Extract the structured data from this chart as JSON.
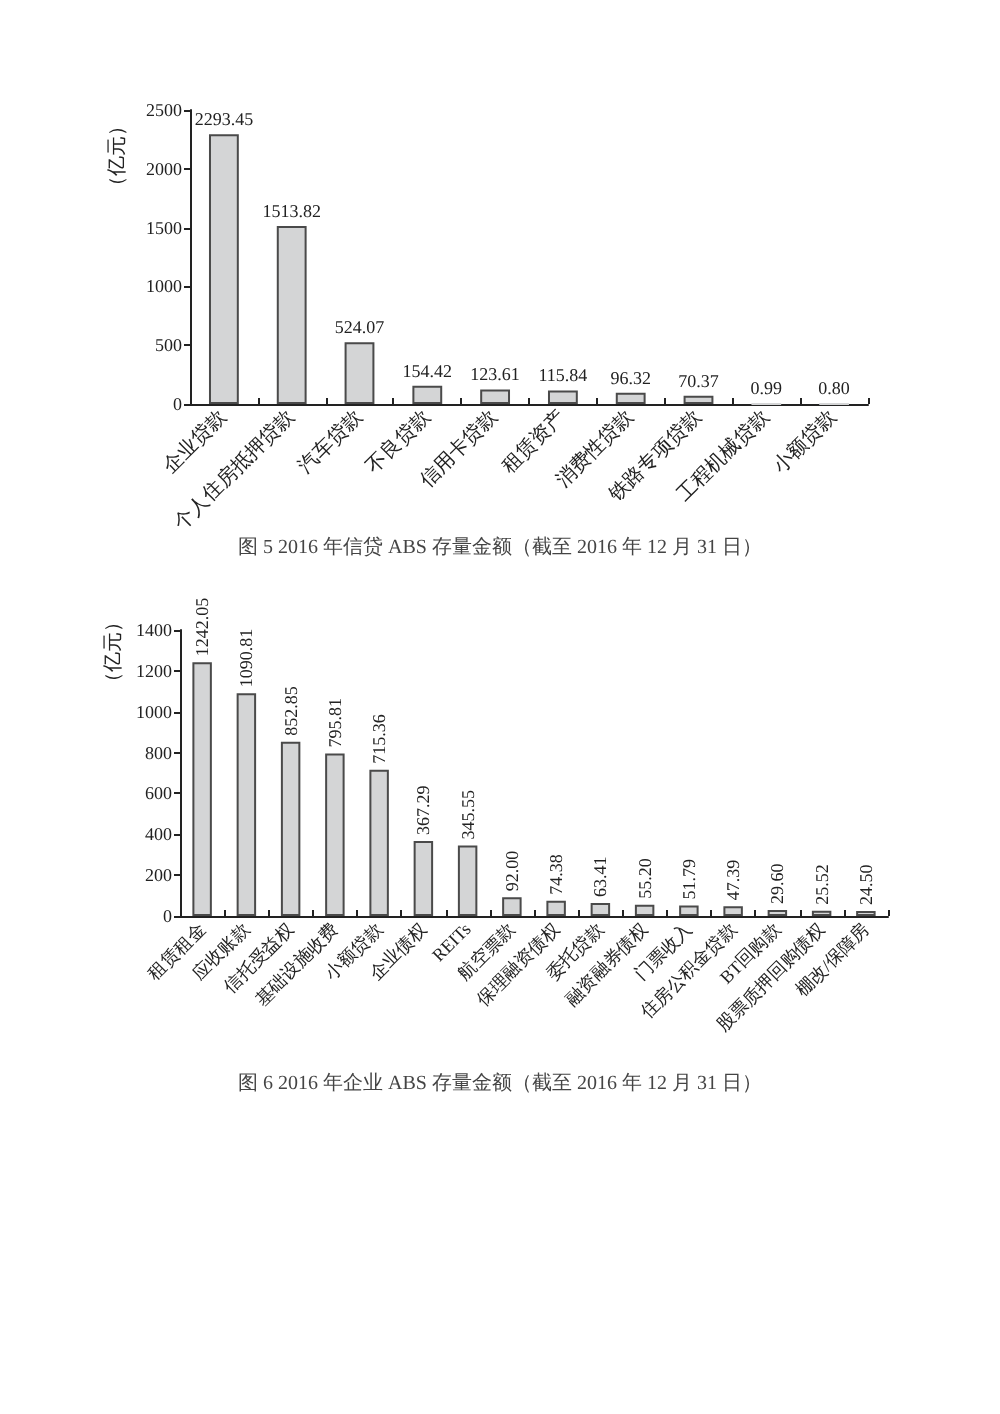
{
  "chart_data": [
    {
      "type": "bar",
      "title": "图 5 2016 年信贷 ABS 存量金额（截至 2016 年 12 月 31 日）",
      "ylabel": "（亿元）",
      "categories": [
        "企业贷款",
        "个人住房抵押贷款",
        "汽车贷款",
        "不良贷款",
        "信用卡贷款",
        "租赁资产",
        "消费性贷款",
        "铁路专项贷款",
        "工程机械贷款",
        "小额贷款"
      ],
      "values": [
        2293.45,
        1513.82,
        524.07,
        154.42,
        123.61,
        115.84,
        96.32,
        70.37,
        0.99,
        0.8
      ],
      "value_labels": [
        "2293.45",
        "1513.82",
        "524.07",
        "154.42",
        "123.61",
        "115.84",
        "96.32",
        "70.37",
        "0.99",
        "0.80"
      ],
      "color": "#d4d5d6",
      "ylim": [
        0,
        2500
      ],
      "yticks": [
        0,
        500,
        1000,
        1500,
        2000,
        2500
      ],
      "grid": false
    },
    {
      "type": "bar",
      "title": "图 6 2016 年企业 ABS 存量金额（截至 2016 年 12 月 31 日）",
      "ylabel": "（亿元）",
      "categories": [
        "租赁租金",
        "应收账款",
        "信托受益权",
        "基础设施收费",
        "小额贷款",
        "企业债权",
        "REITs",
        "航空票款",
        "保理融资债权",
        "委托贷款",
        "融资融券债权",
        "门票收入",
        "住房公积金贷款",
        "BT回购款",
        "股票质押回购债权",
        "棚改/保障房"
      ],
      "values": [
        1242.05,
        1090.81,
        852.85,
        795.81,
        715.36,
        367.29,
        345.55,
        92,
        74.38,
        63.41,
        55.2,
        51.79,
        47.39,
        29.6,
        25.52,
        24.5
      ],
      "value_labels": [
        "1242.05",
        "1090.81",
        "852.85",
        "795.81",
        "715.36",
        "367.29",
        "345.55",
        "92.00",
        "74.38",
        "63.41",
        "55.20",
        "51.79",
        "47.39",
        "29.60",
        "25.52",
        "24.50"
      ],
      "color": "#d4d5d6",
      "ylim": [
        0,
        1400
      ],
      "yticks": [
        0,
        200,
        400,
        600,
        800,
        1000,
        1200,
        1400
      ],
      "grid": false
    }
  ]
}
